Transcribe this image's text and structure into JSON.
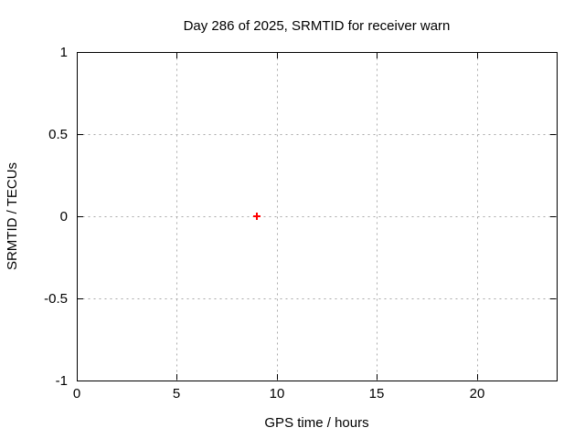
{
  "chart_data": {
    "type": "scatter",
    "title": "Day 286 of 2025, SRMTID for receiver warn",
    "xlabel": "GPS time / hours",
    "ylabel": "SRMTID / TECUs",
    "xlim": [
      0,
      24
    ],
    "ylim": [
      -1,
      1
    ],
    "xticks": [
      0,
      5,
      10,
      15,
      20
    ],
    "yticks": [
      -1,
      -0.5,
      0,
      0.5,
      1
    ],
    "grid": true,
    "legend_position": "none",
    "colors": {
      "background": "#ffffff",
      "axis": "#000000",
      "grid": "#a9a9a9",
      "text": "#000000"
    },
    "series": [
      {
        "name": "SRMTID",
        "marker": "plus",
        "color": "#ff0000",
        "points": [
          {
            "x": 9.0,
            "y": 0.0
          }
        ]
      }
    ]
  }
}
